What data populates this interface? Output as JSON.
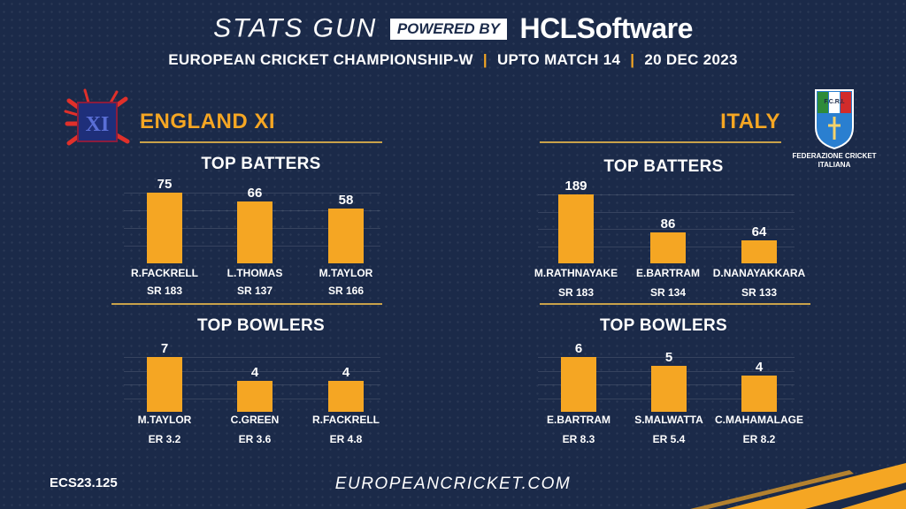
{
  "header": {
    "brand": "STATS GUN",
    "powered_by": "POWERED BY",
    "sponsor": "HCLSoftware",
    "competition": "EUROPEAN CRICKET CHAMPIONSHIP-W",
    "upto": "UPTO MATCH 14",
    "date": "20 DEC 2023"
  },
  "footer": {
    "code": "ECS23.125",
    "website": "EUROPEANCRICKET.COM"
  },
  "colors": {
    "background": "#1b2a49",
    "bar": "#f5a623",
    "accent": "#f5a623"
  },
  "italy_logo": {
    "text": "F.C.R.I.",
    "caption": "FEDERAZIONE CRICKET ITALIANA"
  },
  "chart_data": [
    {
      "type": "bar",
      "title": "TOP BATTERS",
      "team": "ENGLAND XI",
      "categories": [
        "R.FACKRELL",
        "L.THOMAS",
        "M.TAYLOR"
      ],
      "values": [
        75,
        66,
        58
      ],
      "value_labels": [
        "75",
        "66",
        "58"
      ],
      "sublabels": [
        "SR 183",
        "SR 137",
        "SR 166"
      ]
    },
    {
      "type": "bar",
      "title": "TOP BOWLERS",
      "team": "ENGLAND XI",
      "categories": [
        "M.TAYLOR",
        "C.GREEN",
        "R.FACKRELL"
      ],
      "values": [
        7,
        4,
        4
      ],
      "value_labels": [
        "7",
        "4",
        "4"
      ],
      "sublabels": [
        "ER 3.2",
        "ER 3.6",
        "ER 4.8"
      ]
    },
    {
      "type": "bar",
      "title": "TOP BATTERS",
      "team": "ITALY",
      "categories": [
        "M.RATHNAYAKE",
        "E.BARTRAM",
        "D.NANAYAKKARA"
      ],
      "values": [
        189,
        86,
        64
      ],
      "value_labels": [
        "189",
        "86",
        "64"
      ],
      "sublabels": [
        "SR 183",
        "SR 134",
        "SR 133"
      ]
    },
    {
      "type": "bar",
      "title": "TOP BOWLERS",
      "team": "ITALY",
      "categories": [
        "E.BARTRAM",
        "S.MALWATTA",
        "C.MAHAMALAGE"
      ],
      "values": [
        6,
        5,
        4
      ],
      "value_labels": [
        "6",
        "5",
        "4"
      ],
      "sublabels": [
        "ER 8.3",
        "ER 5.4",
        "ER 8.2"
      ]
    }
  ]
}
